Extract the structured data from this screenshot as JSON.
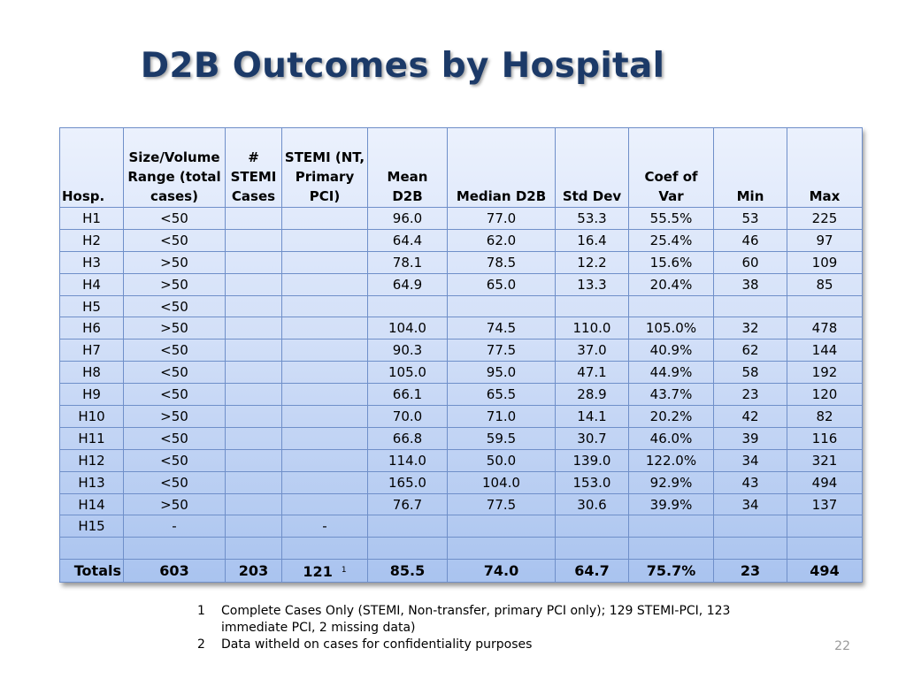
{
  "title": "D2B Outcomes by Hospital",
  "table": {
    "headers": [
      "Hosp.",
      "Size/Volume Range (total cases)",
      "# STEMI Cases",
      "STEMI (NT, Primary PCI)",
      "Mean D2B",
      "Median D2B",
      "Std Dev",
      "Coef of Var",
      "Min",
      "Max"
    ],
    "rows": [
      [
        "H1",
        "<50",
        "",
        "",
        "96.0",
        "77.0",
        "53.3",
        "55.5%",
        "53",
        "225"
      ],
      [
        "H2",
        "<50",
        "",
        "",
        "64.4",
        "62.0",
        "16.4",
        "25.4%",
        "46",
        "97"
      ],
      [
        "H3",
        ">50",
        "",
        "",
        "78.1",
        "78.5",
        "12.2",
        "15.6%",
        "60",
        "109"
      ],
      [
        "H4",
        ">50",
        "",
        "",
        "64.9",
        "65.0",
        "13.3",
        "20.4%",
        "38",
        "85"
      ],
      [
        "H5",
        "<50",
        "",
        "",
        "",
        "",
        "",
        "",
        "",
        ""
      ],
      [
        "H6",
        ">50",
        "",
        "",
        "104.0",
        "74.5",
        "110.0",
        "105.0%",
        "32",
        "478"
      ],
      [
        "H7",
        "<50",
        "",
        "",
        "90.3",
        "77.5",
        "37.0",
        "40.9%",
        "62",
        "144"
      ],
      [
        "H8",
        "<50",
        "",
        "",
        "105.0",
        "95.0",
        "47.1",
        "44.9%",
        "58",
        "192"
      ],
      [
        "H9",
        "<50",
        "",
        "",
        "66.1",
        "65.5",
        "28.9",
        "43.7%",
        "23",
        "120"
      ],
      [
        "H10",
        ">50",
        "",
        "",
        "70.0",
        "71.0",
        "14.1",
        "20.2%",
        "42",
        "82"
      ],
      [
        "H11",
        "<50",
        "",
        "",
        "66.8",
        "59.5",
        "30.7",
        "46.0%",
        "39",
        "116"
      ],
      [
        "H12",
        "<50",
        "",
        "",
        "114.0",
        "50.0",
        "139.0",
        "122.0%",
        "34",
        "321"
      ],
      [
        "H13",
        "<50",
        "",
        "",
        "165.0",
        "104.0",
        "153.0",
        "92.9%",
        "43",
        "494"
      ],
      [
        "H14",
        ">50",
        "",
        "",
        "76.7",
        "77.5",
        "30.6",
        "39.9%",
        "34",
        "137"
      ],
      [
        "H15",
        "-",
        "",
        "-",
        "",
        "",
        "",
        "",
        "",
        ""
      ],
      [
        "",
        "",
        "",
        "",
        "",
        "",
        "",
        "",
        "",
        ""
      ]
    ],
    "totals": {
      "label": "Totals",
      "values": [
        "603",
        "203",
        "121",
        "85.5",
        "74.0",
        "64.7",
        "75.7%",
        "23",
        "494"
      ],
      "stemi_footnote": "1"
    }
  },
  "footnotes": [
    {
      "num": "1",
      "text": "Complete Cases Only (STEMI, Non-transfer, primary PCI only); 129 STEMI-PCI, 123 immediate PCI, 2 missing data)"
    },
    {
      "num": "2",
      "text": "Data witheld on cases for confidentiality purposes"
    }
  ],
  "page_number": "22",
  "colors": {
    "title": "#1c3a68",
    "table_border": "#6f8fc9",
    "table_top": "#ebf1fd",
    "table_bottom": "#a9c3ef"
  }
}
